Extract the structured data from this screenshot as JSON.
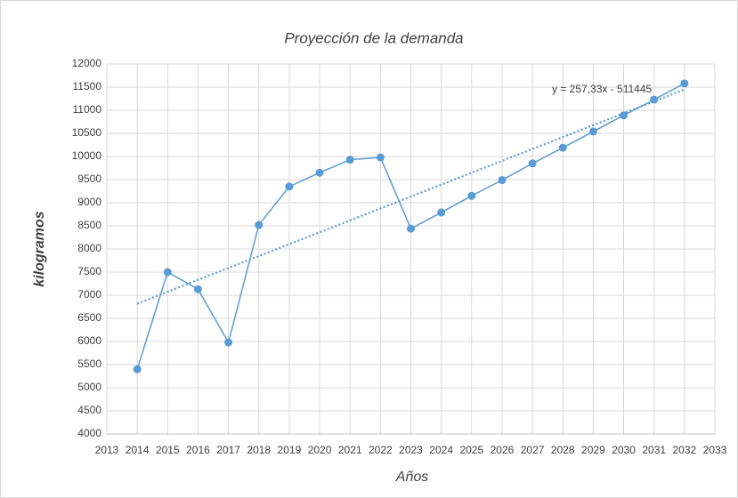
{
  "chart_data": {
    "type": "line",
    "title": "Proyección de la demanda",
    "xlabel": "Años",
    "ylabel": "kilogramos",
    "x": [
      2014,
      2015,
      2016,
      2017,
      2018,
      2019,
      2020,
      2021,
      2022,
      2023,
      2024,
      2025,
      2026,
      2027,
      2028,
      2029,
      2030,
      2031,
      2032
    ],
    "series": [
      {
        "color": "#5b9bd5",
        "values": [
          5400,
          7500,
          7130,
          5980,
          8520,
          9350,
          9650,
          9930,
          9980,
          8440,
          8790,
          9150,
          9490,
          9850,
          10190,
          10540,
          10890,
          11230,
          11580
        ]
      }
    ],
    "trendline": {
      "label": "y = 257,33x - 511445",
      "slope": 257.33,
      "intercept": -511445,
      "x": [
        2014,
        2032
      ]
    },
    "xlim": [
      2013,
      2033
    ],
    "xticks": [
      2013,
      2014,
      2015,
      2016,
      2017,
      2018,
      2019,
      2020,
      2021,
      2022,
      2023,
      2024,
      2025,
      2026,
      2027,
      2028,
      2029,
      2030,
      2031,
      2032,
      2033
    ],
    "ylim": [
      4000,
      12000
    ],
    "yticks": [
      4000,
      4500,
      5000,
      5500,
      6000,
      6500,
      7000,
      7500,
      8000,
      8500,
      9000,
      9500,
      10000,
      10500,
      11000,
      11500,
      12000
    ],
    "grid": true
  }
}
